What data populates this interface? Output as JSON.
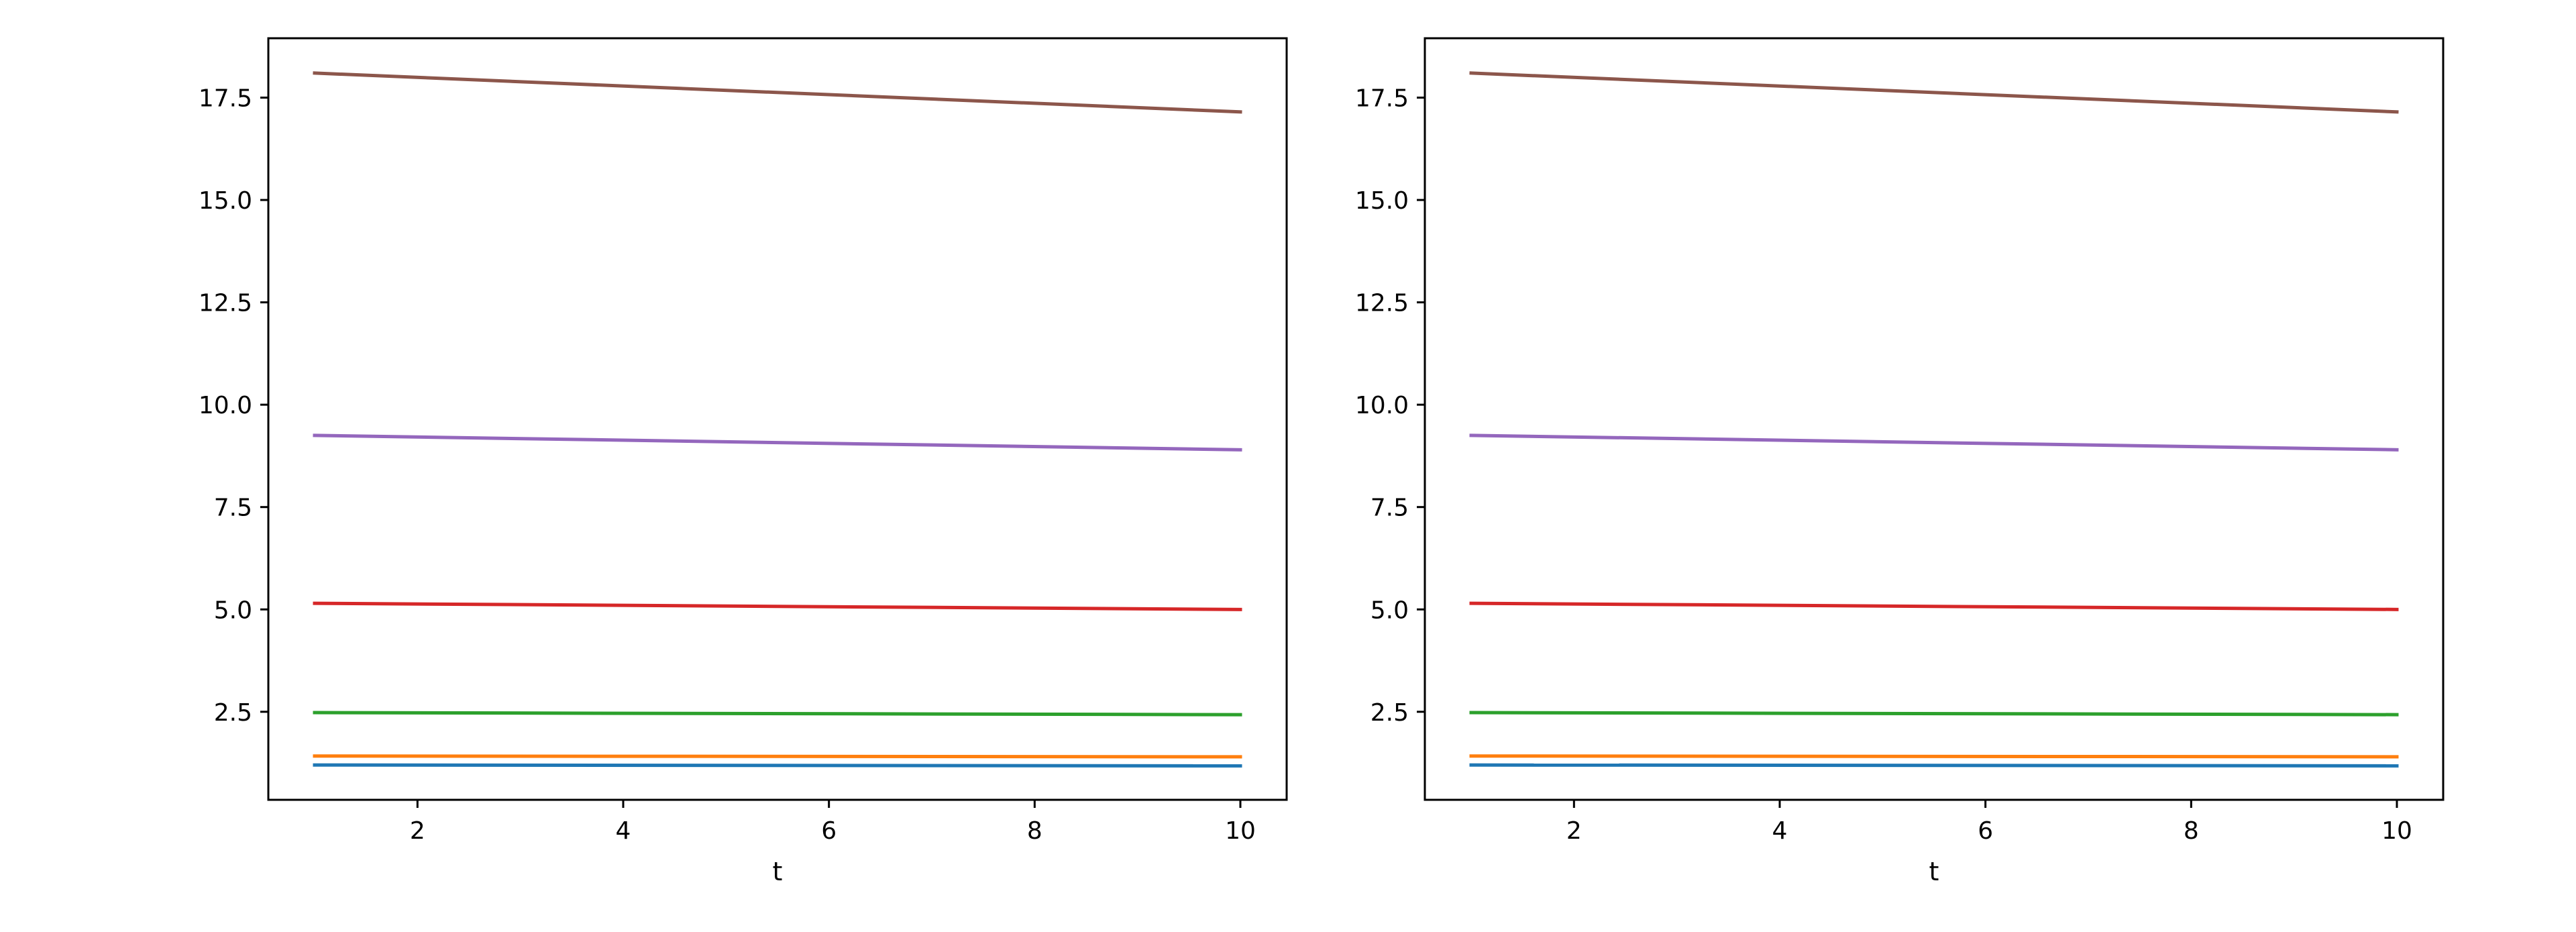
{
  "chart_data": [
    {
      "type": "line",
      "title": "",
      "xlabel": "t",
      "ylabel": "",
      "xlim": [
        0.55,
        10.45
      ],
      "ylim": [
        0.35,
        18.95
      ],
      "xticks": [
        2,
        4,
        6,
        8,
        10
      ],
      "xtick_labels": [
        "2",
        "4",
        "6",
        "8",
        "10"
      ],
      "yticks": [
        2.5,
        5.0,
        7.5,
        10.0,
        12.5,
        15.0,
        17.5
      ],
      "ytick_labels": [
        "2.5",
        "5.0",
        "7.5",
        "10.0",
        "12.5",
        "15.0",
        "17.5"
      ],
      "grid": false,
      "x": [
        1,
        10
      ],
      "series": [
        {
          "color": "#1f77b4",
          "values": [
            1.2,
            1.18
          ]
        },
        {
          "color": "#ff7f0e",
          "values": [
            1.42,
            1.4
          ]
        },
        {
          "color": "#2ca02c",
          "values": [
            2.48,
            2.43
          ]
        },
        {
          "color": "#d62728",
          "values": [
            5.15,
            5.0
          ]
        },
        {
          "color": "#9467bd",
          "values": [
            9.25,
            8.9
          ]
        },
        {
          "color": "#8c564b",
          "values": [
            18.1,
            17.15
          ]
        }
      ]
    },
    {
      "type": "line",
      "title": "",
      "xlabel": "t",
      "ylabel": "",
      "xlim": [
        0.55,
        10.45
      ],
      "ylim": [
        0.35,
        18.95
      ],
      "xticks": [
        2,
        4,
        6,
        8,
        10
      ],
      "xtick_labels": [
        "2",
        "4",
        "6",
        "8",
        "10"
      ],
      "yticks": [
        2.5,
        5.0,
        7.5,
        10.0,
        12.5,
        15.0,
        17.5
      ],
      "ytick_labels": [
        "2.5",
        "5.0",
        "7.5",
        "10.0",
        "12.5",
        "15.0",
        "17.5"
      ],
      "grid": false,
      "x": [
        1,
        10
      ],
      "series": [
        {
          "color": "#1f77b4",
          "values": [
            1.2,
            1.18
          ]
        },
        {
          "color": "#ff7f0e",
          "values": [
            1.42,
            1.4
          ]
        },
        {
          "color": "#2ca02c",
          "values": [
            2.48,
            2.43
          ]
        },
        {
          "color": "#d62728",
          "values": [
            5.15,
            5.0
          ]
        },
        {
          "color": "#9467bd",
          "values": [
            9.25,
            8.9
          ]
        },
        {
          "color": "#8c564b",
          "values": [
            18.1,
            17.15
          ]
        }
      ]
    }
  ]
}
